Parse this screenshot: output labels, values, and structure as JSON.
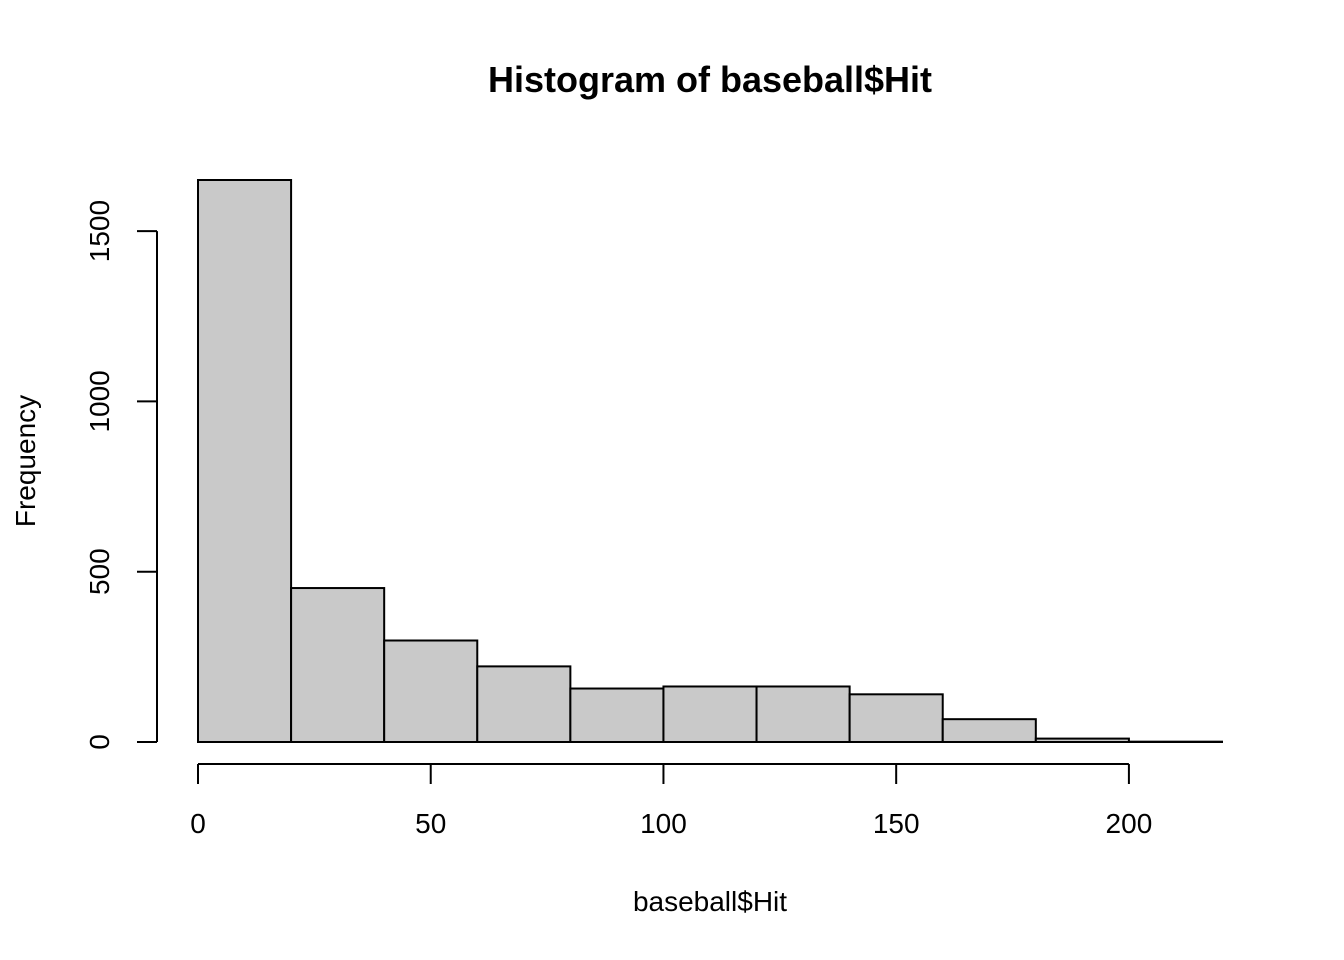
{
  "chart_data": {
    "type": "bar",
    "subtype": "histogram",
    "title": "Histogram of baseball$Hit",
    "xlabel": "baseball$Hit",
    "ylabel": "Frequency",
    "bins": [
      {
        "from": 0,
        "to": 20,
        "value": 1650
      },
      {
        "from": 20,
        "to": 40,
        "value": 452
      },
      {
        "from": 40,
        "to": 60,
        "value": 298
      },
      {
        "from": 60,
        "to": 80,
        "value": 222
      },
      {
        "from": 80,
        "to": 100,
        "value": 157
      },
      {
        "from": 100,
        "to": 120,
        "value": 163
      },
      {
        "from": 120,
        "to": 140,
        "value": 163
      },
      {
        "from": 140,
        "to": 160,
        "value": 140
      },
      {
        "from": 160,
        "to": 180,
        "value": 67
      },
      {
        "from": 180,
        "to": 200,
        "value": 10
      },
      {
        "from": 200,
        "to": 220,
        "value": 1
      }
    ],
    "xlim": [
      0,
      220
    ],
    "ylim": [
      0,
      1650
    ],
    "xticks": [
      0,
      50,
      100,
      150,
      200
    ],
    "yticks": [
      0,
      500,
      1000,
      1500
    ],
    "grid": false,
    "colors": {
      "bar_fill": "#c9c9c9",
      "bar_stroke": "#000000",
      "axis": "#000000"
    }
  }
}
